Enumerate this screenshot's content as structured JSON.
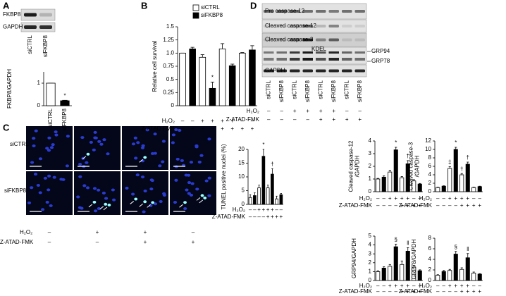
{
  "panel_labels": [
    "A",
    "B",
    "C",
    "D"
  ],
  "blot_A": {
    "rows": [
      "FKBP8",
      "GAPDH"
    ]
  },
  "blot_D": {
    "rows": [
      "Pro caspase-12",
      "Cleaved caspase-12",
      "Cleaved caspase-3",
      "KDEL",
      "GAPDH"
    ],
    "side_labels": [
      "GRP94",
      "GRP78"
    ],
    "lanes": [
      "siCTRL",
      "siFKBP8",
      "siCTRL",
      "siFKBP8",
      "siCTRL",
      "siFKBP8",
      "siCTRL",
      "siFKBP8"
    ],
    "conditions": [
      {
        "label": "H₂O₂",
        "signs": [
          "–",
          "–",
          "+",
          "+",
          "+",
          "+",
          "–",
          "–"
        ]
      },
      {
        "label": "Z-ATAD-FMK",
        "signs": [
          "–",
          "–",
          "–",
          "–",
          "+",
          "+",
          "+",
          "+"
        ]
      }
    ]
  },
  "micrograph_C": {
    "rows": [
      "siCTRL",
      "siFKBP8"
    ],
    "conditions": [
      {
        "label": "H₂O₂",
        "signs": [
          "–",
          "+",
          "+",
          "–"
        ]
      },
      {
        "label": "Z-ATAD-FMK",
        "signs": [
          "–",
          "–",
          "+",
          "+"
        ]
      }
    ]
  },
  "chart_data": [
    {
      "type": "bar",
      "y_label": [
        "FKBP8/GAPDH"
      ],
      "categories": [
        "siCTRL",
        "siFKBP8"
      ],
      "values": [
        1.0,
        0.22
      ],
      "errors": [
        0,
        0.02
      ],
      "value_markers": [
        null,
        "*"
      ],
      "bar_colors": [
        "#ffffff",
        "#000000"
      ],
      "ylim": [
        0,
        1.5
      ],
      "yticks": [
        0,
        1
      ]
    },
    {
      "type": "bar",
      "y_label": [
        "Relative cell survival"
      ],
      "legend": [
        {
          "name": "siCTRL",
          "color": "#ffffff"
        },
        {
          "name": "siFKBP8",
          "color": "#000000"
        }
      ],
      "values": [
        1.0,
        1.08,
        0.92,
        0.33,
        1.08,
        0.76,
        1.0,
        1.06
      ],
      "errors": [
        0,
        0.03,
        0.05,
        0.12,
        0.1,
        0.03,
        0.01,
        0.08
      ],
      "value_markers": [
        null,
        null,
        null,
        "*",
        null,
        null,
        null,
        null
      ],
      "bar_colors": [
        "#ffffff",
        "#000000",
        "#ffffff",
        "#000000",
        "#ffffff",
        "#000000",
        "#ffffff",
        "#000000"
      ],
      "ylim": [
        0,
        1.5
      ],
      "yticks": [
        0,
        0.25,
        0.5,
        0.75,
        {
          "value": 1,
          "label": "1.0"
        },
        1.25,
        1.5
      ],
      "conditions": [
        {
          "label": "H₂O₂",
          "signs": [
            "–",
            "–",
            "+",
            "+",
            "+",
            "+",
            "–",
            "–"
          ]
        },
        {
          "label": "Z-ATAD-FMK",
          "signs": [
            "–",
            "–",
            "–",
            "–",
            "+",
            "+",
            "+",
            "+"
          ]
        }
      ]
    },
    {
      "type": "bar",
      "y_label": [
        "TUNEL positive nuclei (%)"
      ],
      "values": [
        2.5,
        3.2,
        6,
        17.5,
        6,
        11,
        2,
        3.5
      ],
      "errors": [
        1,
        1,
        1,
        2.5,
        1,
        2,
        1,
        0.5
      ],
      "value_markers": [
        null,
        null,
        null,
        "*",
        null,
        "†",
        null,
        null
      ],
      "bar_colors": [
        "#ffffff",
        "#000000",
        "#ffffff",
        "#000000",
        "#ffffff",
        "#000000",
        "#ffffff",
        "#000000"
      ],
      "ylim": [
        0,
        20
      ],
      "yticks": [
        0,
        5,
        10,
        15,
        20
      ],
      "conditions": [
        {
          "label": "H₂O₂",
          "signs": [
            "–",
            "–",
            "+",
            "+",
            "+",
            "+",
            "–",
            "–"
          ]
        },
        {
          "label": "Z-ATAD-FMK",
          "signs": [
            "–",
            "–",
            "–",
            "–",
            "+",
            "+",
            "+",
            "+"
          ]
        }
      ]
    },
    {
      "type": "bar",
      "y_label": [
        "Cleaved caspase-12",
        "/GAPDH"
      ],
      "values": [
        1.0,
        1.15,
        1.55,
        3.3,
        1.1,
        2.2,
        0.85,
        0.6
      ],
      "errors": [
        0.05,
        0.1,
        0.15,
        0.2,
        0.1,
        0.25,
        0.1,
        0.05
      ],
      "value_markers": [
        null,
        null,
        null,
        "*",
        null,
        "†",
        null,
        null
      ],
      "bar_colors": [
        "#ffffff",
        "#000000",
        "#ffffff",
        "#000000",
        "#ffffff",
        "#000000",
        "#ffffff",
        "#000000"
      ],
      "ylim": [
        0,
        4
      ],
      "yticks": [
        0,
        1,
        2,
        3,
        4
      ],
      "conditions": [
        {
          "label": "H₂O₂",
          "signs": [
            "–",
            "–",
            "+",
            "+",
            "+",
            "+",
            "–",
            "–"
          ]
        },
        {
          "label": "Z-ATAD-FMK",
          "signs": [
            "–",
            "–",
            "–",
            "–",
            "+",
            "+",
            "+",
            "+"
          ]
        }
      ]
    },
    {
      "type": "bar",
      "y_label": [
        "Cleaved caspase-3",
        "/GAPDH"
      ],
      "values": [
        1.0,
        1.3,
        5.5,
        10,
        4,
        6.5,
        1.0,
        1.2
      ],
      "errors": [
        0.1,
        0.1,
        0.4,
        0.5,
        0.3,
        0.5,
        0.1,
        0.1
      ],
      "value_markers": [
        null,
        null,
        "‡",
        "*",
        "†",
        "†",
        null,
        null
      ],
      "bar_colors": [
        "#ffffff",
        "#000000",
        "#ffffff",
        "#000000",
        "#ffffff",
        "#000000",
        "#ffffff",
        "#000000"
      ],
      "ylim": [
        0,
        12
      ],
      "yticks": [
        0,
        2,
        4,
        6,
        8,
        10,
        12
      ],
      "conditions": [
        {
          "label": "H₂O₂",
          "signs": [
            "–",
            "–",
            "+",
            "+",
            "+",
            "+",
            "–",
            "–"
          ]
        },
        {
          "label": "Z-ATAD-FMK",
          "signs": [
            "–",
            "–",
            "–",
            "–",
            "+",
            "+",
            "+",
            "+"
          ]
        }
      ]
    },
    {
      "type": "bar",
      "y_label": [
        "GRP94/GAPDH"
      ],
      "values": [
        1.0,
        1.4,
        1.6,
        3.8,
        1.8,
        3.3,
        1.5,
        1.1
      ],
      "errors": [
        0.1,
        0.15,
        0.2,
        0.3,
        0.4,
        0.4,
        0.2,
        0.1
      ],
      "value_markers": [
        null,
        null,
        null,
        "§",
        null,
        "‖",
        null,
        null
      ],
      "bar_colors": [
        "#ffffff",
        "#000000",
        "#ffffff",
        "#000000",
        "#ffffff",
        "#000000",
        "#ffffff",
        "#000000"
      ],
      "ylim": [
        0,
        5
      ],
      "yticks": [
        0,
        1,
        2,
        3,
        4,
        5
      ],
      "conditions": [
        {
          "label": "H₂O₂",
          "signs": [
            "–",
            "–",
            "+",
            "+",
            "+",
            "+",
            "–",
            "–"
          ]
        },
        {
          "label": "Z-ATAD-FMK",
          "signs": [
            "–",
            "–",
            "–",
            "–",
            "+",
            "+",
            "+",
            "+"
          ]
        }
      ]
    },
    {
      "type": "bar",
      "y_label": [
        "GRP78/GAPDH"
      ],
      "values": [
        1.0,
        1.7,
        1.9,
        5.0,
        2.1,
        4.3,
        1.4,
        1.2
      ],
      "errors": [
        0.1,
        0.2,
        0.2,
        0.5,
        0.3,
        0.8,
        0.2,
        0.1
      ],
      "value_markers": [
        null,
        null,
        null,
        "§",
        null,
        "‖",
        null,
        null
      ],
      "bar_colors": [
        "#ffffff",
        "#000000",
        "#ffffff",
        "#000000",
        "#ffffff",
        "#000000",
        "#ffffff",
        "#000000"
      ],
      "ylim": [
        0,
        8
      ],
      "yticks": [
        0,
        2,
        4,
        6,
        8
      ],
      "conditions": [
        {
          "label": "H₂O₂",
          "signs": [
            "–",
            "–",
            "+",
            "+",
            "+",
            "+",
            "–",
            "–"
          ]
        },
        {
          "label": "Z-ATAD-FMK",
          "signs": [
            "–",
            "–",
            "–",
            "–",
            "+",
            "+",
            "+",
            "+"
          ]
        }
      ]
    }
  ]
}
